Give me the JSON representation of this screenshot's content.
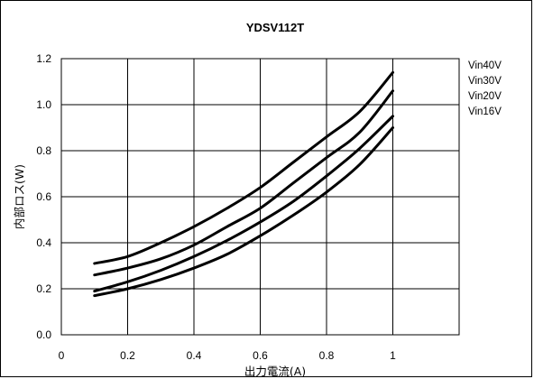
{
  "chart_data": {
    "type": "line",
    "title": "YDSV112T",
    "xlabel": "出力電流(A)",
    "ylabel": "内部ロス(W)",
    "xlim": [
      0,
      1.2
    ],
    "ylim": [
      0,
      1.2
    ],
    "xticks": [
      0,
      0.2,
      0.4,
      0.6,
      0.8,
      1
    ],
    "xtick_labels": [
      "0",
      "0.2",
      "0.4",
      "0.6",
      "0.8",
      "1"
    ],
    "yticks": [
      0,
      0.2,
      0.4,
      0.6,
      0.8,
      1.0,
      1.2
    ],
    "ytick_labels": [
      "0.0",
      "0.2",
      "0.4",
      "0.6",
      "0.8",
      "1.0",
      "1.2"
    ],
    "grid": true,
    "legend_position": "right",
    "line_color": "#000000",
    "x": [
      0.1,
      0.2,
      0.3,
      0.4,
      0.5,
      0.6,
      0.7,
      0.8,
      0.9,
      1.0
    ],
    "series": [
      {
        "name": "Vin40V",
        "values": [
          0.31,
          0.34,
          0.4,
          0.47,
          0.55,
          0.64,
          0.75,
          0.86,
          0.97,
          1.14
        ]
      },
      {
        "name": "Vin30V",
        "values": [
          0.26,
          0.29,
          0.33,
          0.39,
          0.47,
          0.55,
          0.66,
          0.77,
          0.88,
          1.06
        ]
      },
      {
        "name": "Vin20V",
        "values": [
          0.19,
          0.23,
          0.28,
          0.34,
          0.41,
          0.49,
          0.58,
          0.69,
          0.81,
          0.95
        ]
      },
      {
        "name": "Vin16V",
        "values": [
          0.17,
          0.2,
          0.24,
          0.29,
          0.35,
          0.43,
          0.52,
          0.62,
          0.74,
          0.9
        ]
      }
    ]
  }
}
